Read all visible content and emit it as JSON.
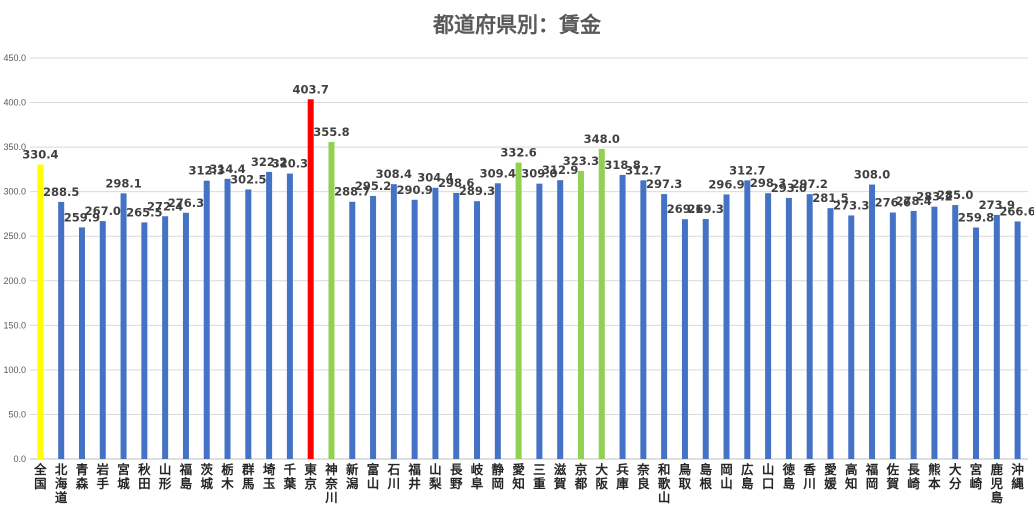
{
  "chart_data": {
    "type": "bar",
    "title": "都道府県別：賃金",
    "xlabel": "",
    "ylabel": "",
    "ylim": [
      0,
      450
    ],
    "yticks": [
      "0.0",
      "50.0",
      "100.0",
      "150.0",
      "200.0",
      "250.0",
      "300.0",
      "350.0",
      "400.0",
      "450.0"
    ],
    "grid": true,
    "legend": "none",
    "categories": [
      "全国",
      "北海道",
      "青森",
      "岩手",
      "宮城",
      "秋田",
      "山形",
      "福島",
      "茨城",
      "栃木",
      "群馬",
      "埼玉",
      "千葉",
      "東京",
      "神奈川",
      "新潟",
      "富山",
      "石川",
      "福井",
      "山梨",
      "長野",
      "岐阜",
      "静岡",
      "愛知",
      "三重",
      "滋賀",
      "京都",
      "大阪",
      "兵庫",
      "奈良",
      "和歌山",
      "鳥取",
      "島根",
      "岡山",
      "広島",
      "山口",
      "徳島",
      "香川",
      "愛媛",
      "高知",
      "福岡",
      "佐賀",
      "長崎",
      "熊本",
      "大分",
      "宮崎",
      "鹿児島",
      "沖縄"
    ],
    "values": [
      330.4,
      288.5,
      259.9,
      267.0,
      298.1,
      265.5,
      272.4,
      276.3,
      312.3,
      314.4,
      302.5,
      322.2,
      320.3,
      403.7,
      355.8,
      288.7,
      295.2,
      308.4,
      290.9,
      304.4,
      298.6,
      289.3,
      309.4,
      332.6,
      309.0,
      312.9,
      323.3,
      348.0,
      318.8,
      312.7,
      297.3,
      269.1,
      269.3,
      296.9,
      312.7,
      298.3,
      293.0,
      297.2,
      281.5,
      273.3,
      308.0,
      276.6,
      278.4,
      283.2,
      285.0,
      259.8,
      273.9,
      266.6
    ],
    "value_labels": [
      "330.4",
      "288.5",
      "259.9",
      "267.0",
      "298.1",
      "265.5",
      "272.4",
      "276.3",
      "312.3",
      "314.4",
      "302.5",
      "322.2",
      "320.3",
      "403.7",
      "355.8",
      "288.7",
      "295.2",
      "308.4",
      "290.9",
      "304.4",
      "298.6",
      "289.3",
      "309.4",
      "332.6",
      "309.0",
      "312.9",
      "323.3",
      "348.0",
      "318.8",
      "312.7",
      "297.3",
      "269.1",
      "269.3",
      "296.9",
      "312.7",
      "298.3",
      "293.0",
      "297.2",
      "281.5",
      "273.3",
      "308.0",
      "276.6",
      "278.4",
      "283.2",
      "285.0",
      "259.8",
      "273.9",
      "266.6"
    ],
    "colors": {
      "default": "#4472c4",
      "national": "#ffff00",
      "tokyo": "#ff0000",
      "highlight": "#92d050"
    },
    "bar_color_keys": [
      "national",
      "default",
      "default",
      "default",
      "default",
      "default",
      "default",
      "default",
      "default",
      "default",
      "default",
      "default",
      "default",
      "tokyo",
      "highlight",
      "default",
      "default",
      "default",
      "default",
      "default",
      "default",
      "default",
      "default",
      "highlight",
      "default",
      "default",
      "highlight",
      "highlight",
      "default",
      "default",
      "default",
      "default",
      "default",
      "default",
      "default",
      "default",
      "default",
      "default",
      "default",
      "default",
      "default",
      "default",
      "default",
      "default",
      "default",
      "default",
      "default",
      "default"
    ]
  }
}
